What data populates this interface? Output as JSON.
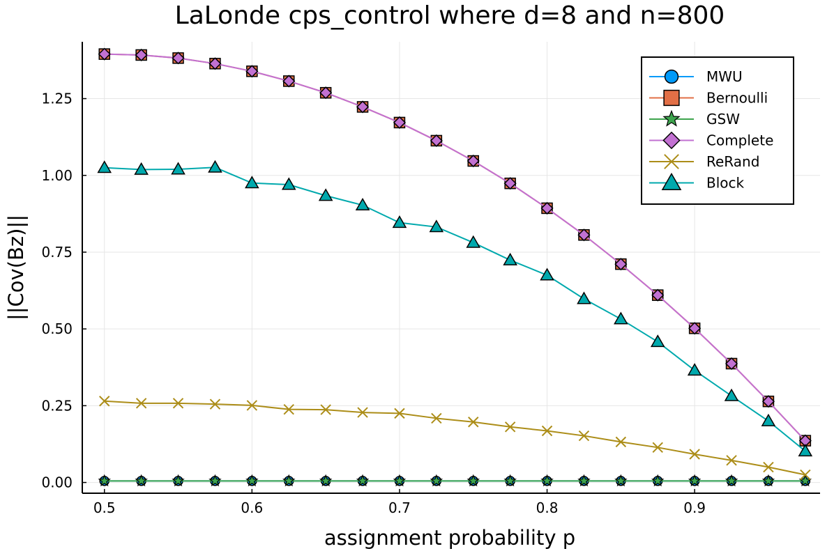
{
  "chart_data": {
    "type": "line",
    "title": "LaLonde cps_control where d=8 and n=800",
    "xlabel": "assignment probability p",
    "ylabel": "||Cov(Bz)||",
    "xlim": [
      0.485,
      0.985
    ],
    "ylim": [
      -0.035,
      1.435
    ],
    "x_ticks": [
      0.5,
      0.6,
      0.7,
      0.8,
      0.9
    ],
    "x_tick_labels": [
      "0.5",
      "0.6",
      "0.7",
      "0.8",
      "0.9"
    ],
    "y_ticks": [
      0.0,
      0.25,
      0.5,
      0.75,
      1.0,
      1.25
    ],
    "y_tick_labels": [
      "0.00",
      "0.25",
      "0.50",
      "0.75",
      "1.00",
      "1.25"
    ],
    "grid": true,
    "legend_position": "top-right",
    "x": [
      0.5,
      0.525,
      0.55,
      0.575,
      0.6,
      0.625,
      0.65,
      0.675,
      0.7,
      0.725,
      0.75,
      0.775,
      0.8,
      0.825,
      0.85,
      0.875,
      0.9,
      0.925,
      0.95,
      0.975
    ],
    "series": [
      {
        "name": "MWU",
        "color": "#009af9",
        "marker": "circle",
        "values": [
          0.005,
          0.005,
          0.005,
          0.005,
          0.005,
          0.005,
          0.005,
          0.005,
          0.005,
          0.005,
          0.005,
          0.005,
          0.005,
          0.005,
          0.005,
          0.005,
          0.005,
          0.005,
          0.005,
          0.005
        ]
      },
      {
        "name": "Bernoulli",
        "color": "#e26f46",
        "marker": "square",
        "values": [
          1.395,
          1.392,
          1.382,
          1.364,
          1.339,
          1.307,
          1.269,
          1.223,
          1.172,
          1.113,
          1.047,
          0.974,
          0.893,
          0.806,
          0.711,
          0.61,
          0.502,
          0.387,
          0.264,
          0.136
        ]
      },
      {
        "name": "GSW",
        "color": "#3da44d",
        "marker": "star",
        "values": [
          0.005,
          0.005,
          0.005,
          0.005,
          0.005,
          0.005,
          0.005,
          0.005,
          0.005,
          0.005,
          0.005,
          0.005,
          0.005,
          0.005,
          0.005,
          0.005,
          0.005,
          0.005,
          0.005,
          0.005
        ]
      },
      {
        "name": "Complete",
        "color": "#c271d2",
        "marker": "diamond",
        "values": [
          1.395,
          1.392,
          1.382,
          1.364,
          1.339,
          1.307,
          1.269,
          1.223,
          1.172,
          1.113,
          1.047,
          0.974,
          0.893,
          0.806,
          0.711,
          0.61,
          0.502,
          0.387,
          0.264,
          0.136
        ]
      },
      {
        "name": "ReRand",
        "color": "#ac8d18",
        "marker": "x",
        "values": [
          0.265,
          0.258,
          0.258,
          0.255,
          0.251,
          0.238,
          0.237,
          0.228,
          0.225,
          0.209,
          0.197,
          0.181,
          0.168,
          0.152,
          0.132,
          0.114,
          0.092,
          0.072,
          0.05,
          0.025
        ]
      },
      {
        "name": "Block",
        "color": "#00a9ad",
        "marker": "triangle",
        "values": [
          1.025,
          1.019,
          1.02,
          1.026,
          0.975,
          0.97,
          0.934,
          0.903,
          0.846,
          0.832,
          0.781,
          0.724,
          0.675,
          0.598,
          0.532,
          0.458,
          0.365,
          0.282,
          0.2,
          0.102
        ]
      }
    ]
  }
}
